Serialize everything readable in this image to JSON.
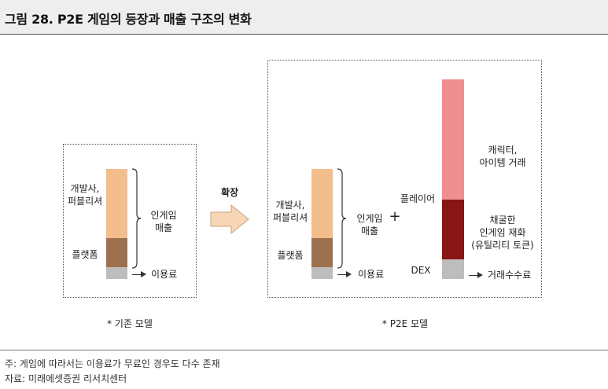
{
  "title": "그림 28. P2E 게임의 등장과 매출 구조의 변화",
  "arrow_label": "확장",
  "left_model": {
    "developer_label": "개발사,\n퍼블리셔",
    "platform_label": "플랫폼",
    "iap_label": "인게임\n매출",
    "fee_label": "이용료",
    "caption": "* 기존 모델"
  },
  "right_model": {
    "developer_label": "개발사,\n퍼블리셔",
    "platform_label": "플랫폼",
    "iap_label": "인게임\n매출",
    "fee_label": "이용료",
    "plus": "+",
    "player_label": "플레이어",
    "items_label": "캐릭터,\n아이템 거래",
    "token_label": "채굴한\n인게임 재화\n(유틸리티 토큰)",
    "dex_label": "DEX",
    "trade_fee_label": "거래수수료",
    "caption": "* P2E 모델"
  },
  "colors": {
    "developer": "#f4bd8c",
    "platform": "#9c7150",
    "fee": "#bdbdbd",
    "items": "#f08f8f",
    "token": "#8a1515",
    "arrow_fill": "#f7d6b5",
    "arrow_stroke": "#c9a27a"
  },
  "footer": {
    "note": "주: 게임에 따라서는 이용료가 무료인 경우도 다수 존재",
    "source": "자료: 미래에셋증권 리서치센터"
  }
}
